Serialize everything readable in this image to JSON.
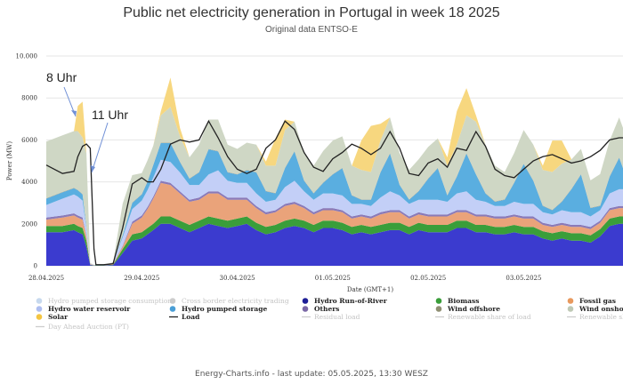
{
  "title": "Public net electricity generation in Portugal in week 18 2025",
  "subtitle": "Original data ENTSO-E",
  "footer": "Energy-Charts.info - last update: 05.05.2025, 13:30 WESZ",
  "annotations": [
    "8 Uhr",
    "11 Uhr"
  ],
  "chart_data": {
    "type": "area",
    "title": "Public net electricity generation in Portugal in week 18 2025",
    "xlabel": "Date (GMT+1)",
    "ylabel": "Power (MW)",
    "ylim": [
      0,
      10000
    ],
    "yticks": [
      0,
      2000,
      4000,
      6000,
      8000,
      10000
    ],
    "ytick_labels": [
      "0",
      "2000",
      "4000",
      "6000",
      "8000",
      "10.000"
    ],
    "xlim": [
      0,
      6.04
    ],
    "xtick_labels": [
      "28.04.2025",
      "29.04.2025",
      "30.04.2025",
      "01.05.2025",
      "02.05.2025",
      "03.05.2025"
    ],
    "x": [
      0,
      0.17,
      0.29,
      0.33,
      0.38,
      0.42,
      0.46,
      0.5,
      0.52,
      0.54,
      0.6,
      0.7,
      0.8,
      0.9,
      1.0,
      1.06,
      1.12,
      1.2,
      1.3,
      1.4,
      1.5,
      1.6,
      1.7,
      1.8,
      1.9,
      2.0,
      2.1,
      2.2,
      2.3,
      2.4,
      2.5,
      2.6,
      2.7,
      2.8,
      2.9,
      3.0,
      3.1,
      3.2,
      3.3,
      3.4,
      3.5,
      3.6,
      3.7,
      3.8,
      3.9,
      4.0,
      4.1,
      4.2,
      4.3,
      4.4,
      4.5,
      4.6,
      4.7,
      4.8,
      4.9,
      5.0,
      5.1,
      5.2,
      5.3,
      5.4,
      5.5,
      5.6,
      5.7,
      5.8,
      5.9,
      6.0,
      6.04
    ],
    "series": [
      {
        "name": "Hydro Run-of-River",
        "color": "#3b3bcf",
        "values": [
          1600,
          1600,
          1700,
          1600,
          1500,
          900,
          30,
          10,
          10,
          10,
          10,
          30,
          600,
          1200,
          1300,
          1500,
          1700,
          2000,
          2000,
          1800,
          1600,
          1800,
          2000,
          1900,
          1800,
          1900,
          2000,
          1700,
          1500,
          1600,
          1800,
          1900,
          1800,
          1600,
          1800,
          1800,
          1700,
          1500,
          1600,
          1500,
          1600,
          1700,
          1700,
          1500,
          1700,
          1600,
          1600,
          1600,
          1800,
          1800,
          1600,
          1600,
          1500,
          1500,
          1600,
          1500,
          1500,
          1300,
          1200,
          1300,
          1200,
          1200,
          1100,
          1400,
          1900,
          2000,
          2000
        ]
      },
      {
        "name": "Biomass",
        "color": "#3a9e3a",
        "values": [
          300,
          300,
          300,
          300,
          300,
          300,
          20,
          10,
          10,
          10,
          10,
          20,
          200,
          300,
          300,
          300,
          300,
          350,
          350,
          350,
          350,
          350,
          350,
          350,
          350,
          350,
          350,
          350,
          350,
          350,
          350,
          350,
          350,
          350,
          350,
          350,
          350,
          350,
          350,
          350,
          350,
          350,
          350,
          350,
          350,
          350,
          350,
          350,
          350,
          350,
          350,
          350,
          350,
          350,
          350,
          350,
          350,
          350,
          350,
          350,
          350,
          350,
          350,
          350,
          350,
          350,
          350
        ]
      },
      {
        "name": "Fossil gas",
        "color": "#eaa37a",
        "values": [
          300,
          400,
          400,
          400,
          400,
          200,
          30,
          10,
          10,
          10,
          10,
          30,
          100,
          500,
          700,
          900,
          1200,
          1600,
          1500,
          1300,
          1100,
          1000,
          1100,
          1200,
          1000,
          900,
          800,
          700,
          600,
          600,
          700,
          700,
          600,
          500,
          500,
          500,
          500,
          400,
          400,
          400,
          500,
          500,
          500,
          400,
          400,
          400,
          400,
          400,
          400,
          400,
          400,
          400,
          400,
          400,
          400,
          400,
          400,
          300,
          300,
          300,
          300,
          300,
          300,
          300,
          400,
          400,
          400
        ]
      },
      {
        "name": "Others",
        "color": "#8a7ab8",
        "values": [
          100,
          100,
          100,
          100,
          100,
          50,
          10,
          5,
          5,
          5,
          5,
          10,
          50,
          100,
          100,
          100,
          100,
          100,
          100,
          100,
          100,
          100,
          100,
          100,
          100,
          100,
          100,
          100,
          100,
          100,
          100,
          100,
          100,
          100,
          100,
          100,
          100,
          100,
          100,
          100,
          100,
          100,
          100,
          100,
          100,
          100,
          100,
          100,
          100,
          100,
          100,
          100,
          100,
          100,
          100,
          100,
          100,
          100,
          100,
          100,
          100,
          100,
          100,
          100,
          100,
          100,
          100
        ]
      },
      {
        "name": "Hydro water reservoir",
        "color": "#c3cff7",
        "values": [
          600,
          800,
          900,
          900,
          800,
          300,
          20,
          10,
          10,
          10,
          10,
          50,
          400,
          600,
          700,
          800,
          900,
          1000,
          1000,
          900,
          700,
          600,
          800,
          1000,
          800,
          700,
          700,
          600,
          500,
          500,
          800,
          1000,
          700,
          600,
          700,
          700,
          700,
          600,
          500,
          500,
          700,
          900,
          700,
          600,
          600,
          700,
          700,
          600,
          800,
          900,
          700,
          600,
          500,
          500,
          600,
          600,
          600,
          500,
          500,
          600,
          600,
          600,
          500,
          500,
          700,
          800,
          800
        ]
      },
      {
        "name": "Hydro pumped storage",
        "color": "#5aaee0",
        "values": [
          300,
          300,
          300,
          300,
          300,
          100,
          0,
          0,
          0,
          0,
          0,
          0,
          100,
          300,
          300,
          400,
          600,
          800,
          900,
          500,
          300,
          600,
          1200,
          900,
          400,
          400,
          600,
          1000,
          500,
          300,
          900,
          1400,
          500,
          300,
          500,
          900,
          1300,
          400,
          200,
          300,
          1200,
          1800,
          500,
          200,
          400,
          1000,
          1500,
          300,
          800,
          1800,
          1200,
          400,
          200,
          300,
          900,
          1900,
          1100,
          300,
          200,
          400,
          1100,
          1800,
          400,
          200,
          800,
          1500,
          1000
        ]
      },
      {
        "name": "Wind offshore",
        "color": "#a4a48a",
        "values": [
          20,
          20,
          20,
          20,
          20,
          10,
          0,
          0,
          0,
          0,
          0,
          0,
          10,
          20,
          20,
          20,
          20,
          20,
          20,
          20,
          20,
          20,
          20,
          20,
          20,
          20,
          20,
          20,
          20,
          20,
          20,
          20,
          20,
          20,
          20,
          20,
          20,
          20,
          20,
          20,
          20,
          20,
          20,
          20,
          20,
          20,
          20,
          20,
          20,
          20,
          20,
          20,
          20,
          20,
          20,
          20,
          20,
          20,
          20,
          20,
          20,
          20,
          20,
          20,
          20,
          20,
          20
        ]
      },
      {
        "name": "Wind onshore",
        "color": "#cfd7c5",
        "values": [
          2700,
          2700,
          2700,
          2800,
          2700,
          3500,
          20,
          10,
          10,
          10,
          10,
          30,
          1500,
          1300,
          1000,
          1000,
          900,
          1300,
          1700,
          1200,
          1000,
          1300,
          1400,
          1500,
          1300,
          1200,
          1300,
          1300,
          1200,
          1300,
          1800,
          1400,
          1300,
          1300,
          1500,
          1600,
          1500,
          1400,
          1400,
          1300,
          1500,
          1700,
          1500,
          1400,
          1500,
          1500,
          1400,
          1400,
          1500,
          1800,
          2500,
          2300,
          1700,
          1300,
          1400,
          1600,
          1700,
          1700,
          1800,
          1800,
          1400,
          1200,
          1300,
          1500,
          1700,
          1900,
          1900
        ]
      },
      {
        "name": "Solar",
        "color": "#f7d77f",
        "values": [
          0,
          0,
          0,
          1200,
          1700,
          0,
          0,
          0,
          0,
          0,
          0,
          0,
          0,
          0,
          0,
          0,
          0,
          200,
          1400,
          400,
          0,
          0,
          0,
          0,
          0,
          0,
          0,
          0,
          200,
          1300,
          500,
          0,
          0,
          0,
          0,
          0,
          0,
          0,
          1400,
          2200,
          800,
          0,
          0,
          0,
          0,
          0,
          0,
          400,
          1600,
          1300,
          300,
          0,
          0,
          0,
          0,
          0,
          0,
          200,
          1500,
          1100,
          0,
          0,
          0,
          0,
          0,
          0,
          0
        ]
      }
    ],
    "load": {
      "name": "Load",
      "color": "#222222",
      "values": [
        4800,
        4400,
        4500,
        5200,
        5700,
        5800,
        5600,
        800,
        50,
        50,
        50,
        100,
        1800,
        3900,
        4200,
        4000,
        4000,
        4600,
        5800,
        6000,
        5900,
        6000,
        6900,
        6100,
        5200,
        4600,
        4400,
        4600,
        5600,
        6000,
        6900,
        6500,
        5400,
        4700,
        4500,
        5100,
        5400,
        5800,
        5600,
        5300,
        5600,
        6400,
        5600,
        4400,
        4300,
        4900,
        5100,
        4700,
        5600,
        5500,
        6400,
        5700,
        4600,
        4300,
        4200,
        4600,
        5000,
        5200,
        5300,
        5100,
        4900,
        5000,
        5200,
        5500,
        6000,
        6100,
        6100
      ]
    },
    "legend_placement": "bottom",
    "legend": [
      {
        "label": "Hydro pumped storage consumption",
        "color": "#c7d9ee",
        "active": false
      },
      {
        "label": "Cross border electricity trading",
        "color": "#cccccc",
        "active": false
      },
      {
        "label": "Hydro Run-of-River",
        "color": "#1e1e96",
        "active": true
      },
      {
        "label": "Biomass",
        "color": "#3a9e3a",
        "active": true
      },
      {
        "label": "Fossil gas",
        "color": "#e8995e",
        "active": true
      },
      {
        "label": "Hydro water reservoir",
        "color": "#aebef0",
        "active": true
      },
      {
        "label": "Hydro pumped storage",
        "color": "#4a9ed6",
        "active": true
      },
      {
        "label": "Others",
        "color": "#7b68a6",
        "active": true
      },
      {
        "label": "Wind offshore",
        "color": "#8f8f73",
        "active": true
      },
      {
        "label": "Wind onshore",
        "color": "#bfc9b5",
        "active": true
      },
      {
        "label": "Solar",
        "color": "#f4c542",
        "active": true
      },
      {
        "label": "Load",
        "color": "#222222",
        "active": true,
        "line": true
      },
      {
        "label": "Residual load",
        "color": "#cccccc",
        "active": false,
        "line": true
      },
      {
        "label": "Renewable share of load",
        "color": "#cccccc",
        "active": false,
        "line": true
      },
      {
        "label": "Renewable sh",
        "color": "#cccccc",
        "active": false,
        "line": true
      },
      {
        "label": "Day Ahead Auction (PT)",
        "color": "#cccccc",
        "active": false,
        "line": true
      }
    ]
  }
}
